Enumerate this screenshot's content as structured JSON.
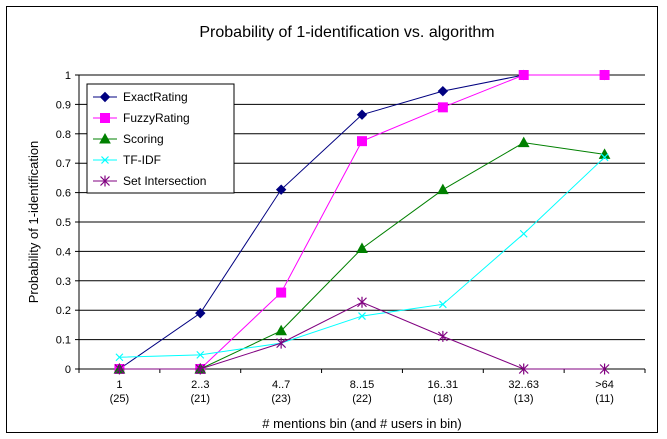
{
  "chart_data": {
    "type": "line",
    "title": "Probability of 1-identification vs. algorithm",
    "xlabel": "# mentions bin (and # users in bin)",
    "ylabel": "Probability of 1-identification",
    "ylim": [
      0,
      1
    ],
    "yticks": [
      "0",
      "0.1",
      "0.2",
      "0.3",
      "0.4",
      "0.5",
      "0.6",
      "0.7",
      "0.8",
      "0.9",
      "1"
    ],
    "categories": [
      "1",
      "2..3",
      "4..7",
      "8..15",
      "16..31",
      "32..63",
      ">64"
    ],
    "category_counts": [
      "(25)",
      "(21)",
      "(23)",
      "(22)",
      "(18)",
      "(13)",
      "(11)"
    ],
    "grid": true,
    "legend_position": "top-left",
    "series": [
      {
        "name": "ExactRating",
        "color": "#000080",
        "marker": "diamond",
        "values": [
          0,
          0.19,
          0.61,
          0.865,
          0.945,
          1.0,
          1.0
        ]
      },
      {
        "name": "FuzzyRating",
        "color": "#FF00FF",
        "marker": "square",
        "values": [
          0,
          0,
          0.26,
          0.775,
          0.89,
          1.0,
          1.0
        ]
      },
      {
        "name": "Scoring",
        "color": "#008000",
        "marker": "triangle",
        "values": [
          0,
          0,
          0.13,
          0.41,
          0.61,
          0.77,
          0.73
        ]
      },
      {
        "name": "TF-IDF",
        "color": "#00FFFF",
        "marker": "x",
        "values": [
          0.04,
          0.048,
          0.088,
          0.18,
          0.22,
          0.46,
          0.72
        ]
      },
      {
        "name": "Set Intersection",
        "color": "#800080",
        "marker": "star",
        "values": [
          0,
          0,
          0.088,
          0.227,
          0.111,
          0,
          0
        ]
      }
    ]
  }
}
